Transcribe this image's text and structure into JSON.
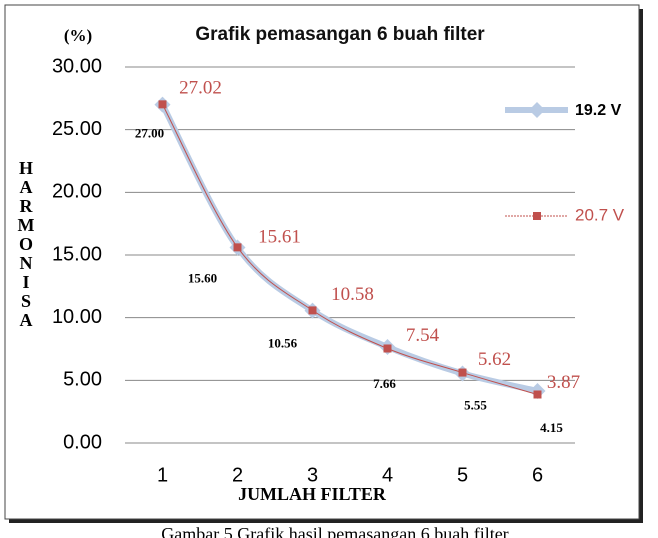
{
  "chart_data": {
    "type": "line",
    "title": "Grafik pemasangan 6 buah filter",
    "y_unit": "(%)",
    "y_label": "HARMONISA",
    "x_label": "JUMLAH FILTER",
    "caption": "Gambar 5 Grafik hasil pemasangan 6 buah filter",
    "categories": [
      "1",
      "2",
      "3",
      "4",
      "5",
      "6"
    ],
    "series": [
      {
        "name": "19.2 V",
        "color": "#b9cbe4",
        "values": [
          27.0,
          15.6,
          10.56,
          7.66,
          5.55,
          4.15
        ],
        "value_labels": [
          "27.00",
          "15.60",
          "10.56",
          "7.66",
          "5.55",
          "4.15"
        ]
      },
      {
        "name": "20.7 V",
        "color": "#c0504d",
        "values": [
          27.02,
          15.61,
          10.58,
          7.54,
          5.62,
          3.87
        ]
      }
    ],
    "ylim": [
      0,
      30
    ],
    "yticks": [
      {
        "value": 0,
        "label": "0.00"
      },
      {
        "value": 5,
        "label": "5.00"
      },
      {
        "value": 10,
        "label": "10.00"
      },
      {
        "value": 15,
        "label": "15.00"
      },
      {
        "value": 20,
        "label": "20.00"
      },
      {
        "value": 25,
        "label": "25.00"
      },
      {
        "value": 30,
        "label": "30.00"
      }
    ],
    "grid": true
  }
}
